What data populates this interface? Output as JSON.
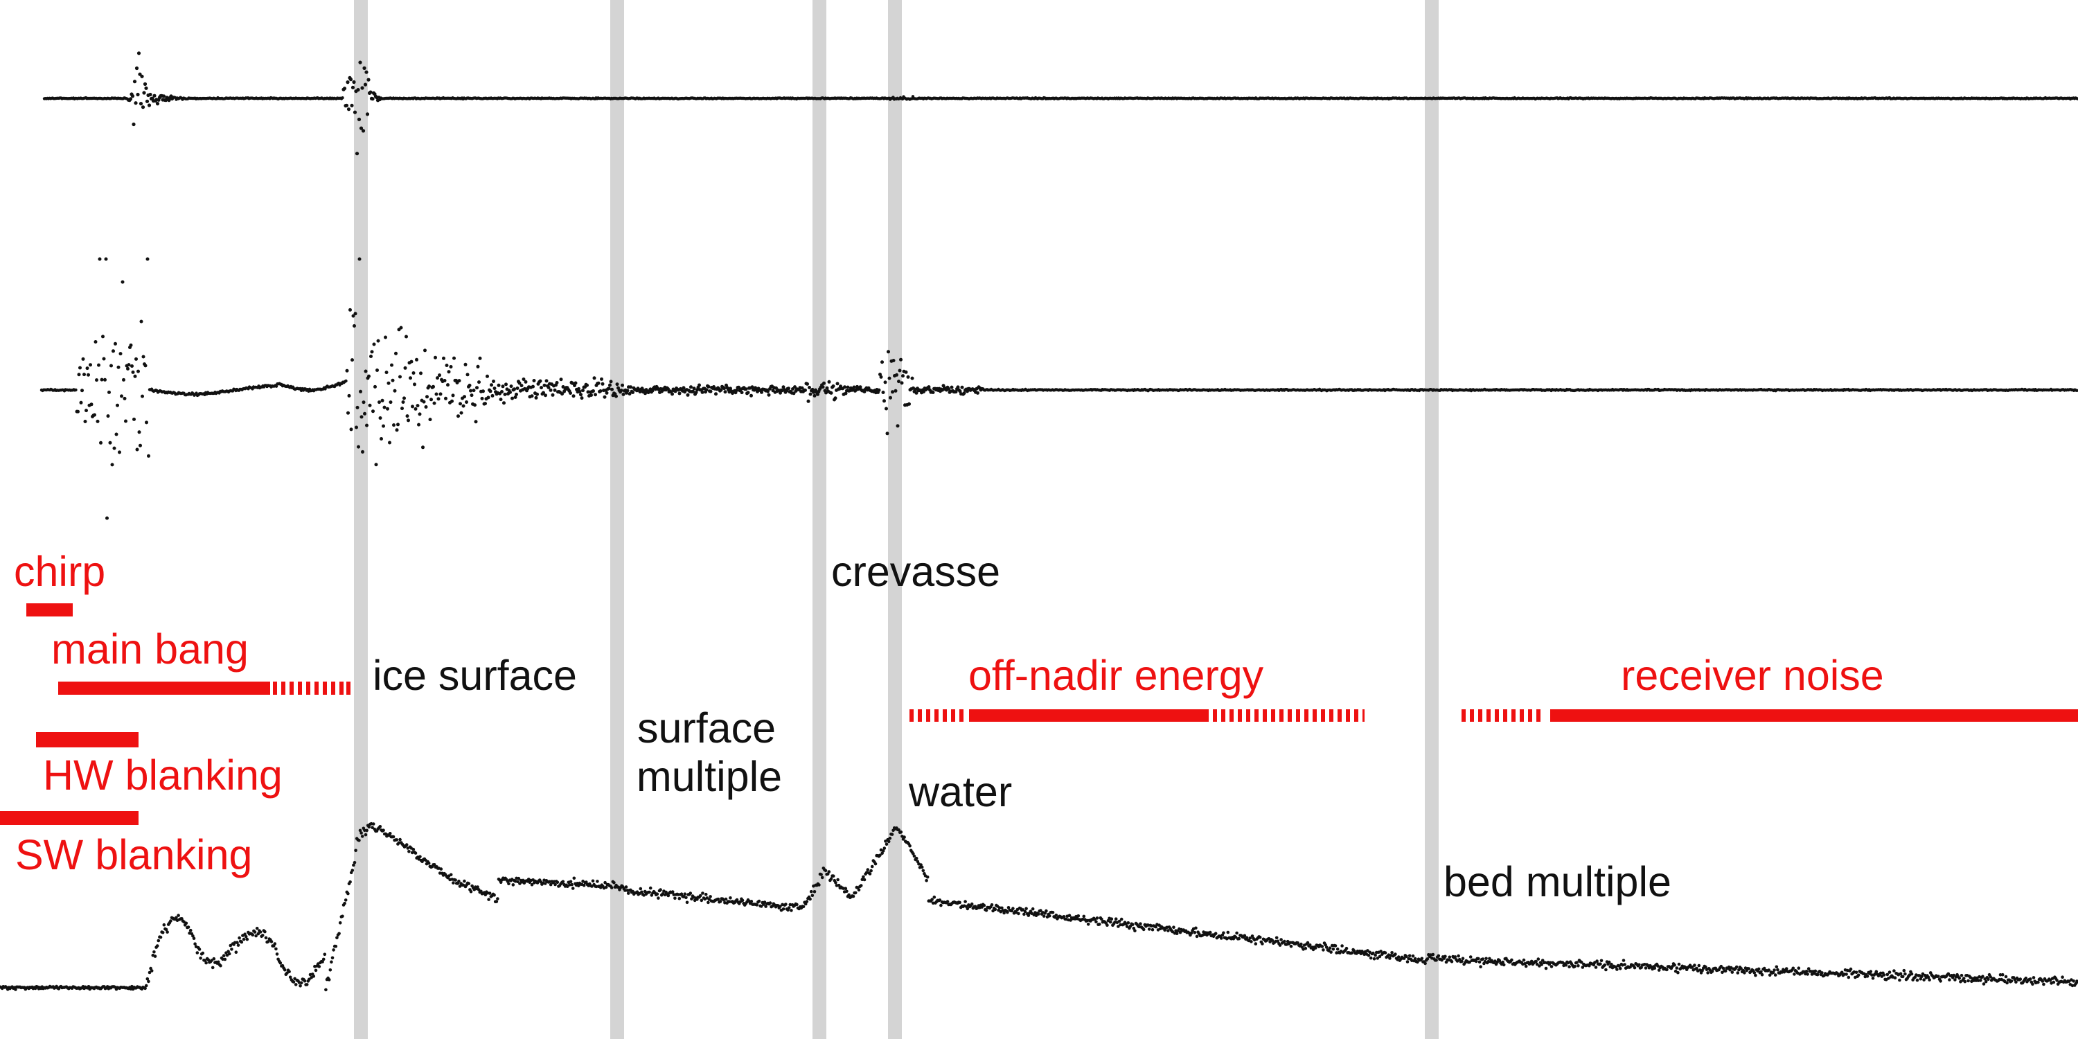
{
  "labels": {
    "chirp": "chirp",
    "main_bang": "main bang",
    "hw_blanking": "HW blanking",
    "sw_blanking": "SW blanking",
    "ice_surface": "ice surface",
    "surface_multiple_1": "surface",
    "surface_multiple_2": "multiple",
    "crevasse": "crevasse",
    "water": "water",
    "off_nadir_energy": "off-nadir energy",
    "receiver_noise": "receiver noise",
    "bed_multiple": "bed multiple"
  },
  "colors": {
    "annotation_red": "#ee1111",
    "annotation_black": "#111111",
    "marker_gray": "#d4d4d4",
    "trace": "#111111"
  }
}
